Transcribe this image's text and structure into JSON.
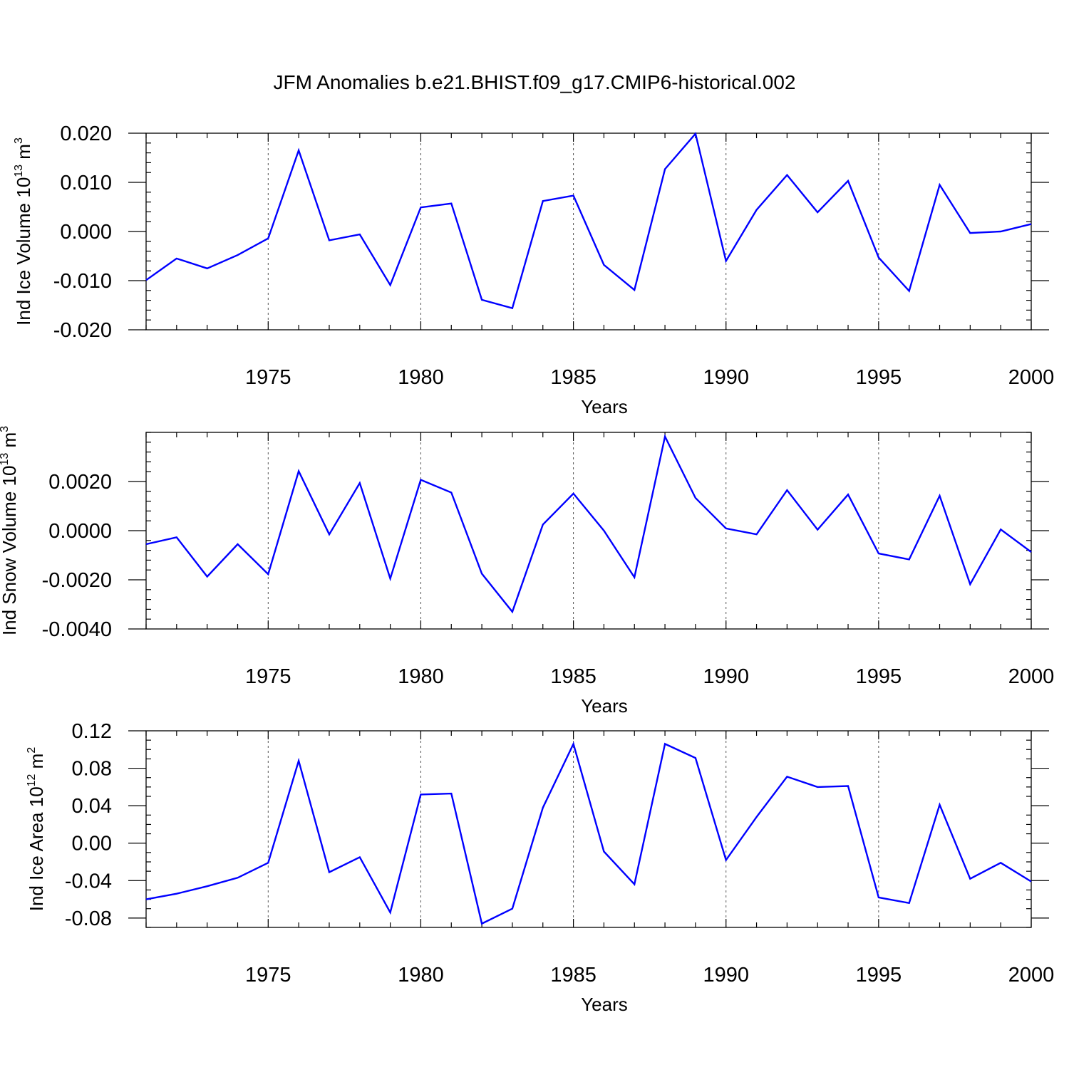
{
  "title": "JFM Anomalies b.e21.BHIST.f09_g17.CMIP6-historical.002",
  "colors": {
    "line": "#0000ff",
    "axis": "#000000",
    "grid": "#555555"
  },
  "chart_data": [
    {
      "type": "line",
      "ylabel": "Ind Ice Volume 10",
      "ylabel_exp": "13",
      "ylabel_unit": " m",
      "ylabel_unit_exp": "3",
      "xlabel": "Years",
      "xlim": [
        1971,
        2000
      ],
      "ylim": [
        -0.02,
        0.02
      ],
      "yticks": [
        -0.02,
        -0.01,
        0.0,
        0.01,
        0.02
      ],
      "yticklabels": [
        "-0.020",
        "-0.010",
        "0.000",
        "0.010",
        "0.020"
      ],
      "yminor": 0.002,
      "xticks": [
        1975,
        1980,
        1985,
        1990,
        1995,
        2000
      ],
      "xticklabels": [
        "1975",
        "1980",
        "1985",
        "1990",
        "1995",
        "2000"
      ],
      "grid_x": true,
      "x": [
        1971,
        1972,
        1973,
        1974,
        1975,
        1976,
        1977,
        1978,
        1979,
        1980,
        1981,
        1982,
        1983,
        1984,
        1985,
        1986,
        1987,
        1988,
        1989,
        1990,
        1991,
        1992,
        1993,
        1994,
        1995,
        1996,
        1997,
        1998,
        1999,
        2000
      ],
      "values": [
        -0.0099,
        -0.0055,
        -0.0075,
        -0.0048,
        -0.0014,
        0.0165,
        -0.0018,
        -0.0006,
        -0.0109,
        0.0049,
        0.0057,
        -0.0139,
        -0.0156,
        0.0062,
        0.0073,
        -0.0068,
        -0.0119,
        0.0127,
        0.0199,
        -0.006,
        0.0044,
        0.0115,
        0.0039,
        0.0103,
        -0.0053,
        -0.0121,
        0.0095,
        -0.0003,
        0.0,
        0.0015
      ]
    },
    {
      "type": "line",
      "ylabel": "Ind Snow Volume 10",
      "ylabel_exp": "13",
      "ylabel_unit": " m",
      "ylabel_unit_exp": "3",
      "xlabel": "Years",
      "xlim": [
        1971,
        2000
      ],
      "ylim": [
        -0.004,
        0.004
      ],
      "yticks": [
        -0.004,
        -0.002,
        0.0,
        0.002
      ],
      "yticklabels": [
        "-0.0040",
        "-0.0020",
        "0.0000",
        "0.0020"
      ],
      "yminor": 0.0004,
      "xticks": [
        1975,
        1980,
        1985,
        1990,
        1995,
        2000
      ],
      "xticklabels": [
        "1975",
        "1980",
        "1985",
        "1990",
        "1995",
        "2000"
      ],
      "grid_x": true,
      "x": [
        1971,
        1972,
        1973,
        1974,
        1975,
        1976,
        1977,
        1978,
        1979,
        1980,
        1981,
        1982,
        1983,
        1984,
        1985,
        1986,
        1987,
        1988,
        1989,
        1990,
        1991,
        1992,
        1993,
        1994,
        1995,
        1996,
        1997,
        1998,
        1999,
        2000
      ],
      "values": [
        -0.00055,
        -0.00027,
        -0.00187,
        -0.00055,
        -0.00177,
        0.00242,
        -0.00015,
        0.00194,
        -0.00195,
        0.00207,
        0.00155,
        -0.00175,
        -0.0033,
        0.00025,
        0.00151,
        0.0,
        -0.0019,
        0.00383,
        0.00133,
        9e-05,
        -0.00015,
        0.00165,
        4e-05,
        0.00147,
        -0.00093,
        -0.00117,
        0.00142,
        -0.00218,
        5e-05,
        -0.00087
      ]
    },
    {
      "type": "line",
      "ylabel": "Ind Ice Area 10",
      "ylabel_exp": "12",
      "ylabel_unit": " m",
      "ylabel_unit_exp": "2",
      "xlabel": "Years",
      "xlim": [
        1971,
        2000
      ],
      "ylim": [
        -0.09,
        0.12
      ],
      "yticks": [
        -0.08,
        -0.04,
        0.0,
        0.04,
        0.08,
        0.12
      ],
      "yticklabels": [
        "-0.08",
        "-0.04",
        "0.00",
        "0.04",
        "0.08",
        "0.12"
      ],
      "yminor": 0.01,
      "xticks": [
        1975,
        1980,
        1985,
        1990,
        1995,
        2000
      ],
      "xticklabels": [
        "1975",
        "1980",
        "1985",
        "1990",
        "1995",
        "2000"
      ],
      "grid_x": true,
      "x": [
        1971,
        1972,
        1973,
        1974,
        1975,
        1976,
        1977,
        1978,
        1979,
        1980,
        1981,
        1982,
        1983,
        1984,
        1985,
        1986,
        1987,
        1988,
        1989,
        1990,
        1991,
        1992,
        1993,
        1994,
        1995,
        1996,
        1997,
        1998,
        1999,
        2000
      ],
      "values": [
        -0.06,
        -0.054,
        -0.046,
        -0.037,
        -0.021,
        0.088,
        -0.031,
        -0.015,
        -0.074,
        0.052,
        0.053,
        -0.086,
        -0.07,
        0.038,
        0.106,
        -0.009,
        -0.044,
        0.106,
        0.091,
        -0.018,
        0.028,
        0.071,
        0.06,
        0.061,
        -0.058,
        -0.064,
        0.041,
        -0.038,
        -0.021,
        -0.041
      ]
    }
  ]
}
